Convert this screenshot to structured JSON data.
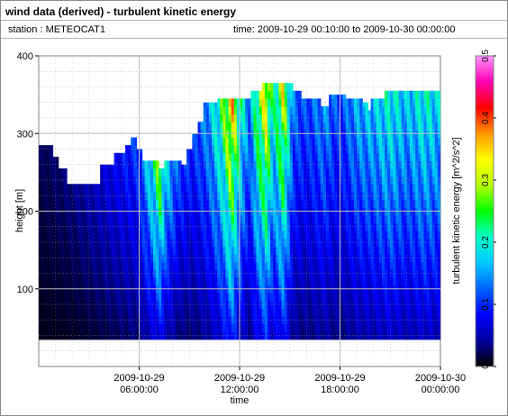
{
  "header": {
    "title": "wind data (derived) - turbulent kinetic energy",
    "station": "station : METEOCAT1",
    "time_range": "time: 2009-10-29 00:10:00 to 2009-10-30 00:00:00"
  },
  "chart_data": {
    "type": "heatmap",
    "xlabel": "time",
    "ylabel": "height [m]",
    "x_ticks": [
      {
        "h": 6,
        "label": [
          "2009-10-29",
          "06:00:00"
        ]
      },
      {
        "h": 12,
        "label": [
          "2009-10-29",
          "12:00:00"
        ]
      },
      {
        "h": 18,
        "label": [
          "2009-10-29",
          "18:00:00"
        ]
      },
      {
        "h": 24,
        "label": [
          "2009-10-30",
          "00:00:00"
        ]
      }
    ],
    "xlim_hours": [
      0,
      24
    ],
    "ylim": [
      0,
      400
    ],
    "y_ticks": [
      100,
      200,
      300,
      400
    ],
    "gridlines": true,
    "colorbar": {
      "label": "turbulent kinetic energy [m^2/s^2]",
      "range": [
        0,
        0.5
      ],
      "ticks": [
        "0",
        "0.1",
        "0.2",
        "0.3",
        "0.4",
        "0.5"
      ],
      "colors": [
        "#000000",
        "#0000a0",
        "#0000ff",
        "#0064ff",
        "#00c8ff",
        "#00ffc8",
        "#00ff00",
        "#b4ff00",
        "#ffff00",
        "#ff9600",
        "#ff0000",
        "#ff00b4",
        "#ff96ff"
      ]
    },
    "data_bottom_m": 35,
    "height_profile": [
      [
        0,
        285
      ],
      [
        0.8,
        270
      ],
      [
        1.2,
        255
      ],
      [
        1.7,
        235
      ],
      [
        3.4,
        235
      ],
      [
        3.6,
        260
      ],
      [
        4.3,
        260
      ],
      [
        4.5,
        275
      ],
      [
        5.2,
        285
      ],
      [
        5.5,
        295
      ],
      [
        5.8,
        280
      ],
      [
        6.1,
        265
      ],
      [
        7.2,
        255
      ],
      [
        7.5,
        265
      ],
      [
        8.5,
        260
      ],
      [
        8.9,
        280
      ],
      [
        9.2,
        300
      ],
      [
        9.5,
        315
      ],
      [
        9.8,
        340
      ],
      [
        10.6,
        345
      ],
      [
        12.6,
        355
      ],
      [
        13.3,
        365
      ],
      [
        15.1,
        355
      ],
      [
        15.6,
        345
      ],
      [
        16.0,
        345
      ],
      [
        16.9,
        335
      ],
      [
        17.4,
        350
      ],
      [
        18.4,
        345
      ],
      [
        19.3,
        340
      ],
      [
        19.6,
        330
      ],
      [
        19.8,
        345
      ],
      [
        20.6,
        355
      ],
      [
        24,
        355
      ]
    ],
    "tke_profile": [
      [
        0,
        0.02
      ],
      [
        2.0,
        0.03
      ],
      [
        3.5,
        0.05
      ],
      [
        5.0,
        0.08
      ],
      [
        6.0,
        0.1
      ],
      [
        6.8,
        0.18
      ],
      [
        7.2,
        0.24
      ],
      [
        7.6,
        0.16
      ],
      [
        8.4,
        0.1
      ],
      [
        9.2,
        0.09
      ],
      [
        10.2,
        0.14
      ],
      [
        11.0,
        0.22
      ],
      [
        11.5,
        0.32
      ],
      [
        12.0,
        0.2
      ],
      [
        12.6,
        0.12
      ],
      [
        13.0,
        0.22
      ],
      [
        13.6,
        0.3
      ],
      [
        14.0,
        0.18
      ],
      [
        14.6,
        0.28
      ],
      [
        15.2,
        0.12
      ],
      [
        16.0,
        0.1
      ],
      [
        17.0,
        0.13
      ],
      [
        18.0,
        0.1
      ],
      [
        19.0,
        0.14
      ],
      [
        20.0,
        0.15
      ],
      [
        21.0,
        0.18
      ],
      [
        22.0,
        0.15
      ],
      [
        23.0,
        0.18
      ],
      [
        24,
        0.16
      ]
    ]
  }
}
